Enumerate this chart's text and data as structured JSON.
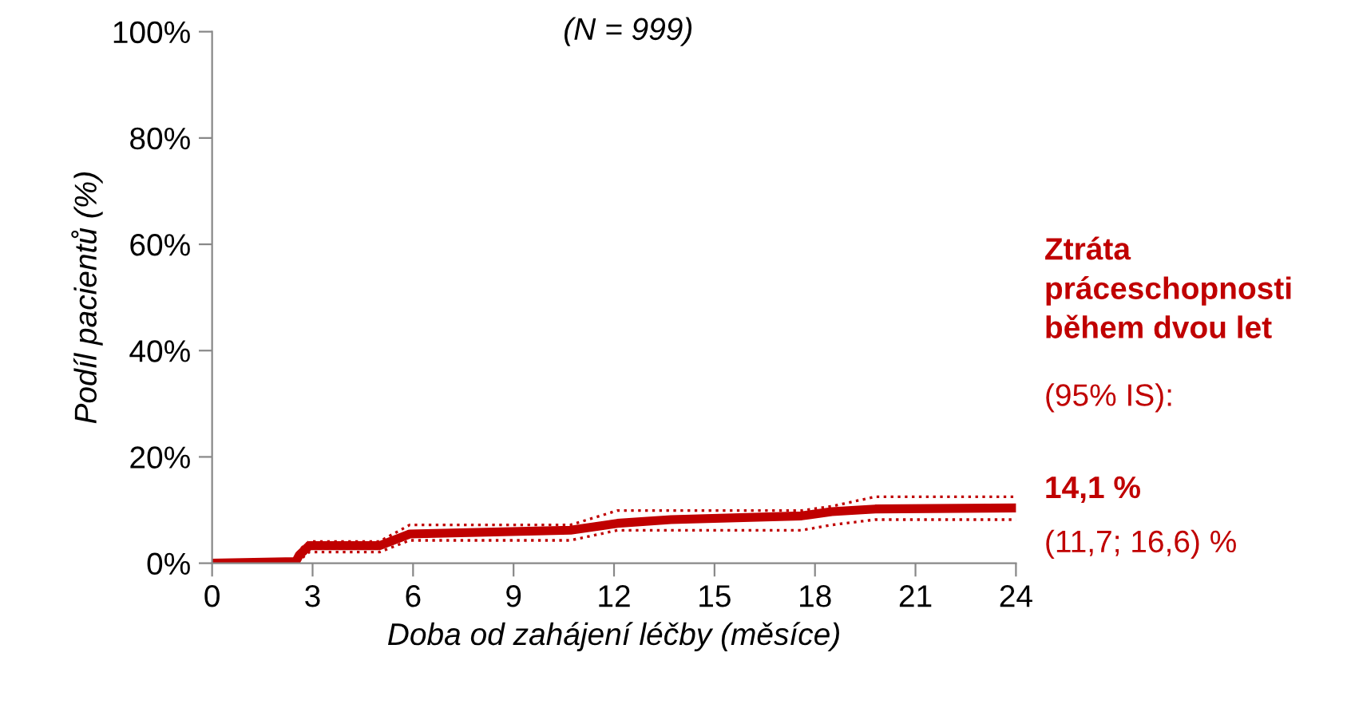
{
  "chart_data": {
    "type": "line",
    "subtitle": "(N = 999)",
    "xlabel": "Doba od zahájení léčby (měsíce)",
    "ylabel": "Podíl pacientů (%)",
    "xlim": [
      0,
      24
    ],
    "xticks": [
      0,
      3,
      6,
      9,
      12,
      15,
      18,
      21,
      24
    ],
    "ylim": [
      0,
      100
    ],
    "yticks": [
      {
        "value": 0,
        "label": "0%"
      },
      {
        "value": 20,
        "label": "20%"
      },
      {
        "value": 40,
        "label": "40%"
      },
      {
        "value": 60,
        "label": "60%"
      },
      {
        "value": 80,
        "label": "80%"
      },
      {
        "value": 100,
        "label": "100%"
      }
    ],
    "grid": false,
    "legend": false,
    "marker": "none",
    "series": [
      {
        "color": "#c00000",
        "line_style": "solid",
        "x": [
          0,
          2.5,
          2.6,
          2.9,
          5.0,
          5.9,
          10.7,
          12.1,
          13.7,
          17.6,
          18.5,
          19.8,
          24
        ],
        "values": [
          0,
          0.3,
          1.5,
          3.3,
          3.3,
          5.5,
          6.2,
          7.5,
          8.2,
          8.9,
          9.7,
          10.2,
          10.4
        ]
      },
      {
        "color": "#c00000",
        "line_style": "dotted",
        "x": [
          0,
          2.5,
          2.6,
          2.9,
          5.0,
          5.9,
          10.7,
          12.1,
          13.7,
          17.6,
          18.5,
          19.8,
          24
        ],
        "values": [
          0,
          0.3,
          0.5,
          2.1,
          2.1,
          4.3,
          4.3,
          6.2,
          6.2,
          6.2,
          7.2,
          8.2,
          8.2
        ]
      },
      {
        "color": "#c00000",
        "line_style": "dotted",
        "x": [
          0,
          2.5,
          2.6,
          2.9,
          5.0,
          5.9,
          10.7,
          12.1,
          13.7,
          17.6,
          18.5,
          19.8,
          24
        ],
        "values": [
          0,
          0.3,
          2.5,
          4.1,
          4.1,
          7.2,
          7.2,
          9.9,
          9.9,
          9.9,
          10.7,
          12.5,
          12.5
        ]
      }
    ],
    "annotations": [
      "Ztráta\npráceschopnosti\nběhem dvou let",
      "(95% IS):",
      "14,1 %",
      "(11,7; 16,6) %"
    ]
  }
}
